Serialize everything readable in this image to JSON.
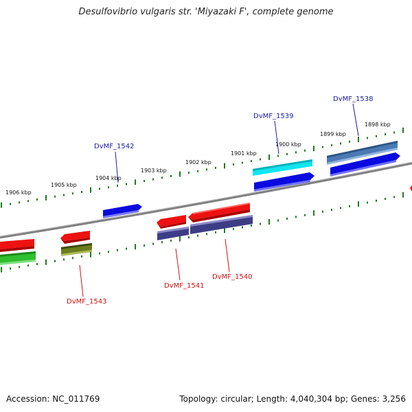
{
  "title": "Desulfovibrio vulgaris str. 'Miyazaki F', complete genome",
  "footer": {
    "accession": "Accession: NC_011769",
    "summary": "Topology: circular; Length: 4,040,304 bp; Genes: 3,256"
  },
  "scale_labels": [
    "1906 kbp",
    "1905 kbp",
    "1904 kbp",
    "1903 kbp",
    "1902 kbp",
    "1901 kbp",
    "1900 kbp",
    "1899 kbp",
    "1898 kbp"
  ],
  "gene_labels": [
    {
      "name": "DvMF_1542",
      "color": "#1a1aa6"
    },
    {
      "name": "DvMF_1539",
      "color": "#1a1aa6"
    },
    {
      "name": "DvMF_1538",
      "color": "#1a1aa6"
    },
    {
      "name": "DvMF_1541",
      "color": "#cc1111"
    },
    {
      "name": "DvMF_1540",
      "color": "#cc1111"
    },
    {
      "name": "DvMF_1543",
      "color": "#cc1111"
    }
  ],
  "colors": {
    "backbone": "#808080",
    "tick": "#1f7a1f",
    "red": "#ee1111",
    "blue": "#0a0ae0",
    "cyan": "#11e5ee",
    "steel": "#4a7ab5",
    "purple": "#3d3d85",
    "green": "#2fbf2f",
    "olive": "#6b7d1a"
  }
}
